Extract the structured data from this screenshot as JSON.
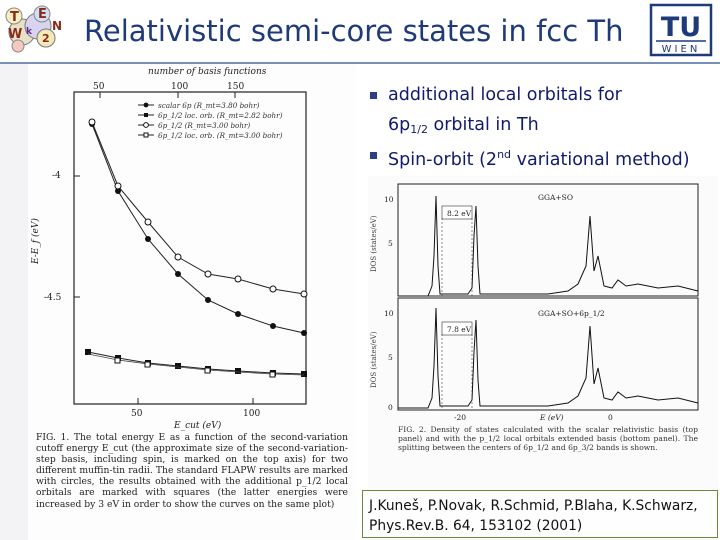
{
  "slide_title": "Relativistic semi-core states in fcc Th",
  "logo_left": {
    "letters": [
      "T",
      "E",
      "W",
      "2",
      "k",
      "N"
    ]
  },
  "tu_logo": {
    "mark": "TU",
    "sub": "WIEN"
  },
  "bullets": {
    "item1_line1": "additional local orbitals for",
    "item1_line2_main": "6p",
    "item1_line2_sub": "1/2",
    "item1_line2_rest": " orbital in Th",
    "item2_pre": "Spin-orbit (2",
    "item2_sup": "nd",
    "item2_post": " variational method)"
  },
  "figure1": {
    "top_axis_title": "number of basis functions",
    "top_ticks": [
      "50",
      "100",
      "150"
    ],
    "bottom_axis_title": "E_cut (eV)",
    "bottom_ticks": [
      "50",
      "100"
    ],
    "y_axis_title": "E-E_f (eV)",
    "y_ticks": [
      "-4",
      "-4.5"
    ],
    "legend": [
      "scalar 6p (R_mt=3.80 bohr)",
      "6p_1/2 loc. orb. (R_mt=2.82 bohr)",
      "6p_1/2 (R_mt=3.00 bohr)",
      "6p_1/2 loc. orb. (R_mt=3.00 bohr)"
    ],
    "caption": "FIG. 1. The total energy E as a function of the second-variation cutoff energy E_cut (the approximate size of the second-variation-step basis, including spin, is marked on the top axis) for two different muffin-tin radii. The standard FLAPW results are marked with circles, the results obtained with the additional p_1/2 local orbitals are marked with squares (the latter energies were increased by 3 eV in order to show the curves on the same plot)"
  },
  "figure2": {
    "panel_top_label": "GGA+SO",
    "panel_top_gap": "8.2 eV",
    "panel_bottom_label": "GGA+SO+6p_1/2",
    "panel_bottom_gap": "7.8 eV",
    "y_axis_title": "DOS (states/eV)",
    "y_ticks": [
      "10",
      "5",
      "0"
    ],
    "x_ticks": [
      "-20",
      "0"
    ],
    "x_axis_title": "E (eV)",
    "caption": "FIG. 2. Density of states calculated with the scalar relativistic basis (top panel) and with the p_1/2 local orbitals extended basis (bottom panel). The splitting between the centers of 6p_1/2 and 6p_3/2 bands is shown."
  },
  "reference": {
    "line1": "J.Kuneš, P.Novak, R.Schmid, P.Blaha, K.Schwarz,",
    "line2": "Phys.Rev.B. 64, 153102 (2001)"
  },
  "colors": {
    "title": "#1f3a7a",
    "bullet_text": "#111a6e",
    "tu_blue": "#1f3a7a",
    "ref_border": "#6b8a3a"
  }
}
